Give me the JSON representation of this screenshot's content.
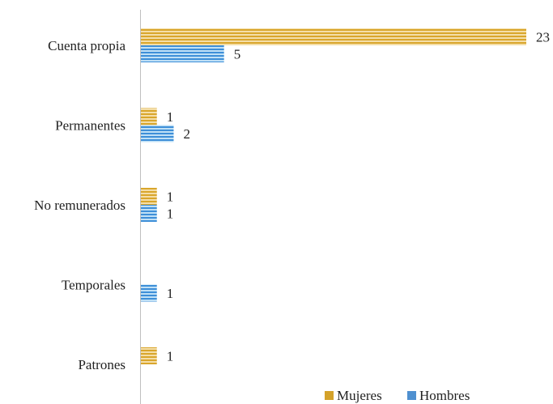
{
  "chart_data": {
    "type": "bar",
    "orientation": "horizontal",
    "categories": [
      "Cuenta propia",
      "Permanentes",
      "No remunerados",
      "Temporales",
      "Patrones"
    ],
    "series": [
      {
        "name": "Mujeres",
        "values": [
          23,
          1,
          1,
          null,
          1
        ],
        "color": "#D4A22A"
      },
      {
        "name": "Hombres",
        "values": [
          5,
          2,
          1,
          1,
          null
        ],
        "color": "#4F90D0"
      }
    ],
    "xlim": [
      0,
      23
    ],
    "grid": false,
    "data_labels": true,
    "legend_position": "bottom-right"
  }
}
